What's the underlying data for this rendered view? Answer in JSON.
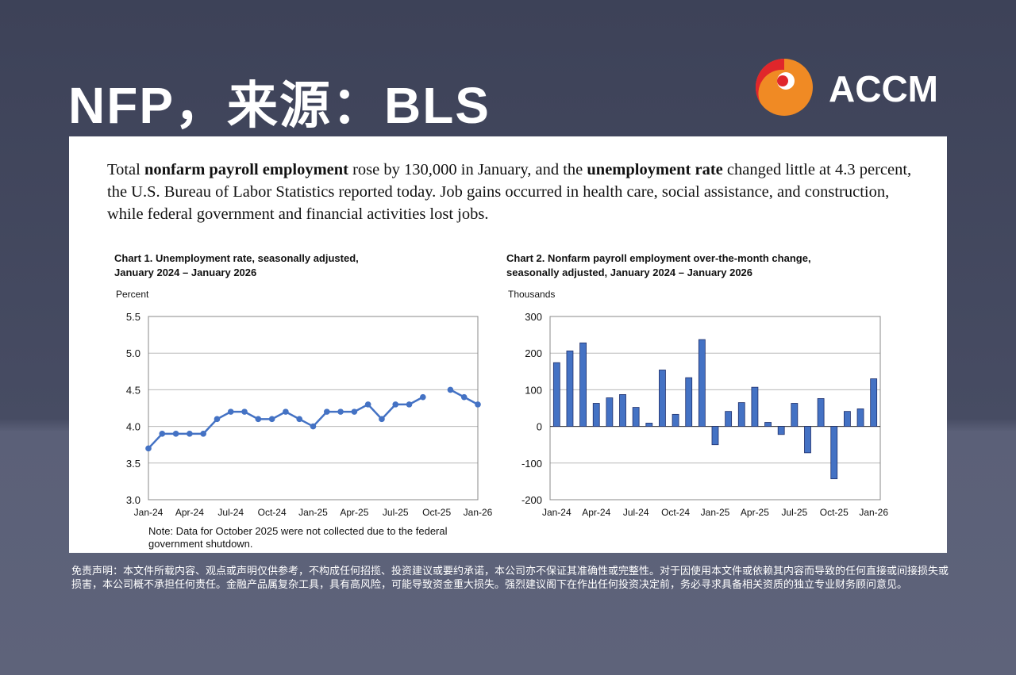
{
  "header": {
    "title": "NFP，来源：BLS",
    "logo": "ACCM"
  },
  "paragraph": [
    {
      "text": "Total ",
      "bold": false
    },
    {
      "text": "nonfarm payroll employment",
      "bold": true
    },
    {
      "text": " rose by 130,000 in January, and the ",
      "bold": false
    },
    {
      "text": "unemployment rate",
      "bold": true
    },
    {
      "text": " changed little at 4.3 percent, the U.S. Bureau of Labor Statistics reported today. Job gains occurred in health care, social assistance, and construction, while federal government and financial activities lost jobs.",
      "bold": false
    }
  ],
  "chart_data": [
    {
      "type": "line",
      "title": [
        "Chart 1. Unemployment rate, seasonally adjusted,",
        "January 2024 – January 2026"
      ],
      "y_label": "Percent",
      "note": [
        "Note: Data for October 2025 were not collected due to the federal",
        "government shutdown."
      ],
      "categories": [
        "Jan-24",
        null,
        null,
        "Apr-24",
        null,
        null,
        "Jul-24",
        null,
        null,
        "Oct-24",
        null,
        null,
        "Jan-25",
        null,
        null,
        "Apr-25",
        null,
        null,
        "Jul-25",
        null,
        null,
        "Oct-25",
        null,
        null,
        "Jan-26"
      ],
      "values": [
        3.7,
        3.9,
        3.9,
        3.9,
        3.9,
        4.1,
        4.2,
        4.2,
        4.1,
        4.1,
        4.2,
        4.1,
        4.0,
        4.2,
        4.2,
        4.2,
        4.3,
        4.1,
        4.3,
        4.3,
        4.4,
        null,
        4.5,
        4.4,
        4.3
      ],
      "color": "#4472c4",
      "ylim": [
        3,
        5.5
      ],
      "yticks": [
        {
          "value": 3,
          "label": "3.0"
        },
        3.5,
        {
          "value": 4,
          "label": "4.0"
        },
        4.5,
        {
          "value": 5,
          "label": "5.0"
        },
        5.5
      ],
      "grid": true
    },
    {
      "type": "bar",
      "title": [
        "Chart 2. Nonfarm payroll employment over-the-month change,",
        "seasonally adjusted, January 2024 – January 2026"
      ],
      "y_label": "Thousands",
      "categories": [
        "Jan-24",
        null,
        null,
        "Apr-24",
        null,
        null,
        "Jul-24",
        null,
        null,
        "Oct-24",
        null,
        null,
        "Jan-25",
        null,
        null,
        "Apr-25",
        null,
        null,
        "Jul-25",
        null,
        null,
        "Oct-25",
        null,
        null,
        "Jan-26"
      ],
      "values": [
        174,
        206,
        228,
        63,
        78,
        87,
        52,
        9,
        154,
        33,
        133,
        237,
        -50,
        41,
        65,
        107,
        11,
        -22,
        63,
        -72,
        76,
        -143,
        41,
        48,
        130
      ],
      "color": "#4472c4",
      "ylim": [
        -200,
        300
      ],
      "yticks": [
        -200,
        -100,
        0,
        100,
        200,
        300
      ],
      "grid": true
    }
  ],
  "disclaimer": "免责声明：本文件所载内容、观点或声明仅供参考，不构成任何招揽、投资建议或要约承诺，本公司亦不保证其准确性或完整性。对于因使用本文件或依赖其内容而导致的任何直接或间接损失或损害，本公司概不承担任何责任。金融产品属复杂工具，具有高风险，可能导致资金重大损失。强烈建议阁下在作出任何投资决定前，务必寻求具备相关资质的独立专业财务顾问意见。"
}
